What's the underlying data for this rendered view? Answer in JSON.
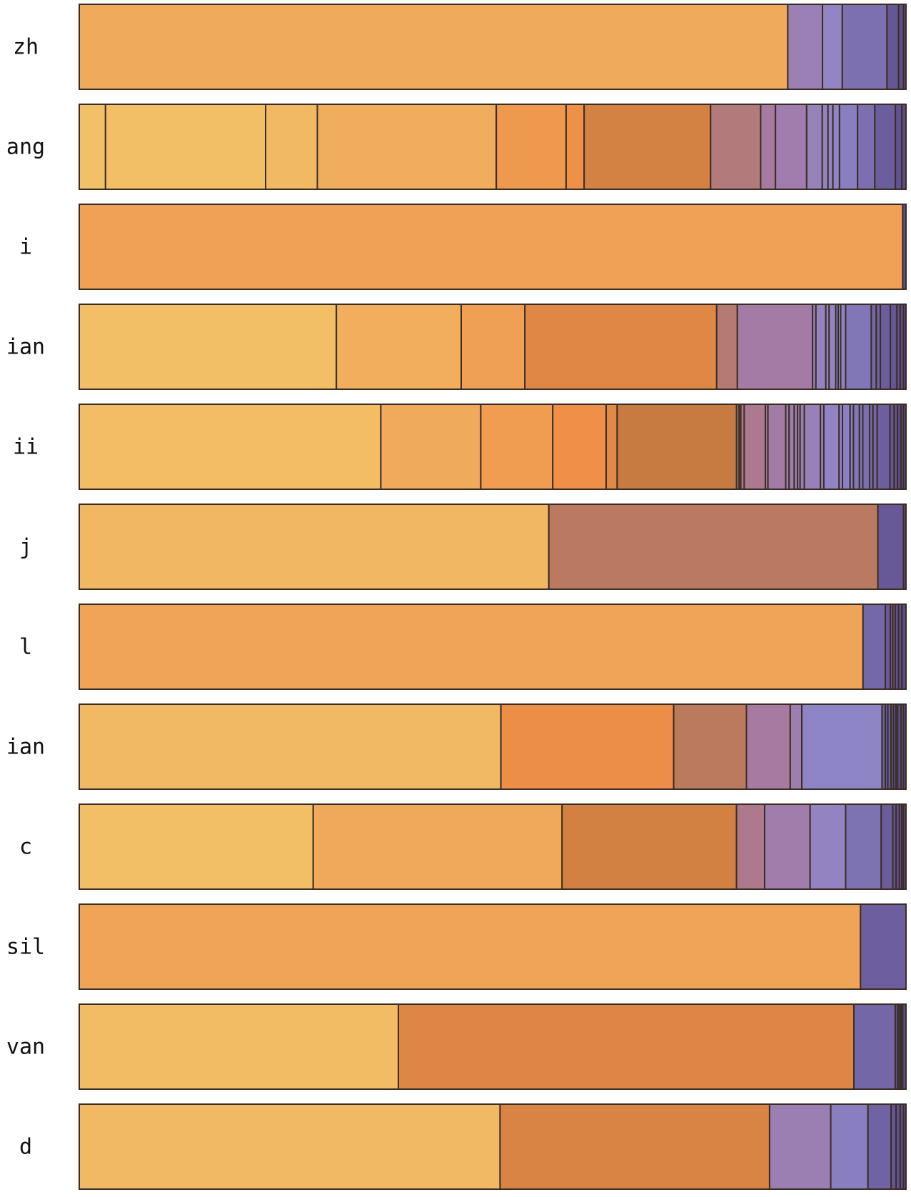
{
  "chart_data": {
    "type": "bar",
    "orientation": "horizontal",
    "stacked": true,
    "normalized": true,
    "title": "",
    "xlabel": "",
    "ylabel": "",
    "grid": false,
    "legend": "none",
    "categories": [
      "zh",
      "ang",
      "i",
      "ian",
      "ii",
      "j",
      "l",
      "ian",
      "c",
      "sil",
      "van",
      "d"
    ],
    "color_scale": [
      "#f2c067",
      "#f0a85a",
      "#ef8f48",
      "#c47a40",
      "#a67aa0",
      "#8f86c8",
      "#5a4a88"
    ],
    "rows": [
      {
        "label": "zh",
        "segments": [
          0.857,
          0.042,
          0.024,
          0.054,
          0.014,
          0.006,
          0.003
        ]
      },
      {
        "label": "ang",
        "segments": [
          0.032,
          0.195,
          0.063,
          0.218,
          0.085,
          0.022,
          0.154,
          0.061,
          0.018,
          0.038,
          0.019,
          0.007,
          0.006,
          0.008,
          0.022,
          0.021,
          0.025,
          0.008,
          0.005
        ]
      },
      {
        "label": "i",
        "segments": [
          0.996,
          0.004
        ]
      },
      {
        "label": "ian",
        "segments": [
          0.311,
          0.151,
          0.077,
          0.232,
          0.025,
          0.091,
          0.004,
          0.012,
          0.004,
          0.008,
          0.003,
          0.003,
          0.006,
          0.031,
          0.006,
          0.005,
          0.012,
          0.008,
          0.004,
          0.004,
          0.003
        ]
      },
      {
        "label": "ii",
        "segments": [
          0.356,
          0.118,
          0.085,
          0.063,
          0.013,
          0.141,
          0.003,
          0.002,
          0.004,
          0.025,
          0.003,
          0.021,
          0.004,
          0.006,
          0.004,
          0.003,
          0.005,
          0.019,
          0.004,
          0.018,
          0.004,
          0.009,
          0.004,
          0.007,
          0.004,
          0.008,
          0.004,
          0.005,
          0.015,
          0.005,
          0.004,
          0.004,
          0.003,
          0.003
        ]
      },
      {
        "label": "j",
        "segments": [
          0.568,
          0.398,
          0.031,
          0.003
        ]
      },
      {
        "label": "l",
        "segments": [
          0.948,
          0.027,
          0.006,
          0.003,
          0.003,
          0.004,
          0.004,
          0.005
        ]
      },
      {
        "label": "ian",
        "segments": [
          0.51,
          0.209,
          0.088,
          0.053,
          0.014,
          0.097,
          0.004,
          0.003,
          0.004,
          0.003,
          0.003,
          0.002,
          0.004,
          0.003,
          0.003
        ]
      },
      {
        "label": "c",
        "segments": [
          0.283,
          0.301,
          0.211,
          0.034,
          0.055,
          0.043,
          0.043,
          0.014,
          0.004,
          0.004,
          0.003,
          0.002,
          0.003
        ]
      },
      {
        "label": "sil",
        "segments": [
          0.945,
          0.055
        ]
      },
      {
        "label": "van",
        "segments": [
          0.386,
          0.551,
          0.05,
          0.003,
          0.002,
          0.002,
          0.002,
          0.004
        ]
      },
      {
        "label": "d",
        "segments": [
          0.509,
          0.326,
          0.074,
          0.045,
          0.028,
          0.006,
          0.005,
          0.004,
          0.003
        ]
      }
    ]
  }
}
